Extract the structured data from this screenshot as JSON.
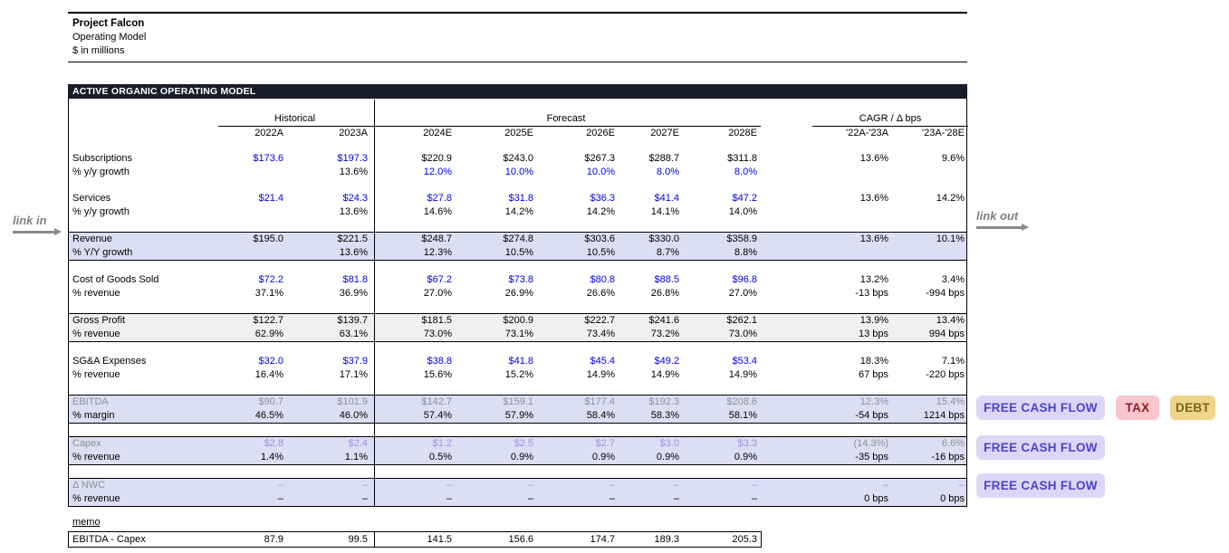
{
  "page": {
    "title": "Project Falcon",
    "subtitle": "Operating Model",
    "units": "$ in millions"
  },
  "links": {
    "link_in": "link in",
    "link_out": "link out"
  },
  "model": {
    "banner": "ACTIVE ORGANIC OPERATING MODEL",
    "col_groups": {
      "historical": "Historical",
      "forecast": "Forecast",
      "cagr": "CAGR / Δ bps"
    },
    "columns": [
      "2022A",
      "2023A",
      "2024E",
      "2025E",
      "2026E",
      "2027E",
      "2028E",
      "'22A-'23A",
      "'23A-'28E"
    ],
    "rows": [
      {
        "label": "Subscriptions",
        "label_style": "calc",
        "sub_label": "% y/y growth",
        "highlight": "none",
        "values": [
          "$173.6",
          "$197.3",
          "$220.9",
          "$243.0",
          "$267.3",
          "$288.7",
          "$311.8",
          "13.6%",
          "9.6%"
        ],
        "value_styles": [
          "input",
          "input",
          "calc",
          "calc",
          "calc",
          "calc",
          "calc",
          "calc",
          "calc"
        ],
        "sub_values": [
          "",
          "13.6%",
          "12.0%",
          "10.0%",
          "10.0%",
          "8.0%",
          "8.0%",
          "",
          ""
        ],
        "sub_styles": [
          "calc",
          "calc",
          "input",
          "input",
          "input",
          "input",
          "input",
          "calc",
          "calc"
        ]
      },
      {
        "label": "Services",
        "label_style": "calc",
        "sub_label": "% y/y growth",
        "highlight": "none",
        "values": [
          "$21.4",
          "$24.3",
          "$27.8",
          "$31.8",
          "$36.3",
          "$41.4",
          "$47.2",
          "13.6%",
          "14.2%"
        ],
        "value_styles": [
          "input",
          "input",
          "input",
          "input",
          "input",
          "input",
          "input",
          "calc",
          "calc"
        ],
        "sub_values": [
          "",
          "13.6%",
          "14.6%",
          "14.2%",
          "14.2%",
          "14.1%",
          "14.0%",
          "",
          ""
        ],
        "sub_styles": [
          "calc",
          "calc",
          "calc",
          "calc",
          "calc",
          "calc",
          "calc",
          "calc",
          "calc"
        ]
      },
      {
        "label": "Revenue",
        "label_style": "calc",
        "sub_label": "% Y/Y growth",
        "highlight": "lav",
        "values": [
          "$195.0",
          "$221.5",
          "$248.7",
          "$274.8",
          "$303.6",
          "$330.0",
          "$358.9",
          "13.6%",
          "10.1%"
        ],
        "value_styles": [
          "calc",
          "calc",
          "calc",
          "calc",
          "calc",
          "calc",
          "calc",
          "calc",
          "calc"
        ],
        "sub_values": [
          "",
          "13.6%",
          "12.3%",
          "10.5%",
          "10.5%",
          "8.7%",
          "8.8%",
          "",
          ""
        ],
        "sub_styles": [
          "calc",
          "calc",
          "calc",
          "calc",
          "calc",
          "calc",
          "calc",
          "calc",
          "calc"
        ]
      },
      {
        "label": "Cost of Goods Sold",
        "label_style": "calc",
        "sub_label": "% revenue",
        "highlight": "none",
        "values": [
          "$72.2",
          "$81.8",
          "$67.2",
          "$73.8",
          "$80.8",
          "$88.5",
          "$96.8",
          "13.2%",
          "3.4%"
        ],
        "value_styles": [
          "input",
          "input",
          "input",
          "input",
          "input",
          "input",
          "input",
          "calc",
          "calc"
        ],
        "sub_values": [
          "37.1%",
          "36.9%",
          "27.0%",
          "26.9%",
          "26.6%",
          "26.8%",
          "27.0%",
          "-13 bps",
          "-994 bps"
        ],
        "sub_styles": [
          "calc",
          "calc",
          "calc",
          "calc",
          "calc",
          "calc",
          "calc",
          "calc",
          "calc"
        ]
      },
      {
        "label": "Gross Profit",
        "label_style": "calc",
        "sub_label": "% revenue",
        "highlight": "gray",
        "values": [
          "$122.7",
          "$139.7",
          "$181.5",
          "$200.9",
          "$222.7",
          "$241.6",
          "$262.1",
          "13.9%",
          "13.4%"
        ],
        "value_styles": [
          "calc",
          "calc",
          "calc",
          "calc",
          "calc",
          "calc",
          "calc",
          "calc",
          "calc"
        ],
        "sub_values": [
          "62.9%",
          "63.1%",
          "73.0%",
          "73.1%",
          "73.4%",
          "73.2%",
          "73.0%",
          "13 bps",
          "994 bps"
        ],
        "sub_styles": [
          "calc",
          "calc",
          "calc",
          "calc",
          "calc",
          "calc",
          "calc",
          "calc",
          "calc"
        ]
      },
      {
        "label": "SG&A Expenses",
        "label_style": "calc",
        "sub_label": "% revenue",
        "highlight": "none",
        "values": [
          "$32.0",
          "$37.9",
          "$38.8",
          "$41.8",
          "$45.4",
          "$49.2",
          "$53.4",
          "18.3%",
          "7.1%"
        ],
        "value_styles": [
          "input",
          "input",
          "input",
          "input",
          "input",
          "input",
          "input",
          "calc",
          "calc"
        ],
        "sub_values": [
          "16.4%",
          "17.1%",
          "15.6%",
          "15.2%",
          "14.9%",
          "14.9%",
          "14.9%",
          "67 bps",
          "-220 bps"
        ],
        "sub_styles": [
          "calc",
          "calc",
          "calc",
          "calc",
          "calc",
          "calc",
          "calc",
          "calc",
          "calc"
        ]
      },
      {
        "label": "EBITDA",
        "label_style": "muted",
        "sub_label": "% margin",
        "highlight": "lav",
        "values": [
          "$90.7",
          "$101.9",
          "$142.7",
          "$159.1",
          "$177.4",
          "$192.3",
          "$208.6",
          "12.3%",
          "15.4%"
        ],
        "value_styles": [
          "muted",
          "muted",
          "muted",
          "muted",
          "muted",
          "muted",
          "muted",
          "muted",
          "muted"
        ],
        "sub_values": [
          "46.5%",
          "46.0%",
          "57.4%",
          "57.9%",
          "58.4%",
          "58.3%",
          "58.1%",
          "-54 bps",
          "1214 bps"
        ],
        "sub_styles": [
          "calc",
          "calc",
          "calc",
          "calc",
          "calc",
          "calc",
          "calc",
          "calc",
          "calc"
        ]
      },
      {
        "label": "Capex",
        "label_style": "muted",
        "sub_label": "% revenue",
        "highlight": "lav",
        "values": [
          "$2.8",
          "$2.4",
          "$1.2",
          "$2.5",
          "$2.7",
          "$3.0",
          "$3.3",
          "(14.3%)",
          "6.6%"
        ],
        "value_styles": [
          "soft",
          "soft",
          "soft",
          "soft",
          "soft",
          "soft",
          "soft",
          "muted",
          "muted"
        ],
        "sub_values": [
          "1.4%",
          "1.1%",
          "0.5%",
          "0.9%",
          "0.9%",
          "0.9%",
          "0.9%",
          "-35 bps",
          "-16 bps"
        ],
        "sub_styles": [
          "calc",
          "calc",
          "calc",
          "calc",
          "calc",
          "calc",
          "calc",
          "calc",
          "calc"
        ]
      },
      {
        "label": "Δ NWC",
        "label_style": "muted",
        "sub_label": "% revenue",
        "highlight": "lav",
        "values": [
          "–",
          "–",
          "–",
          "–",
          "–",
          "–",
          "–",
          "–",
          "–"
        ],
        "value_styles": [
          "soft",
          "soft",
          "soft",
          "soft",
          "soft",
          "soft",
          "soft",
          "muted",
          "muted"
        ],
        "sub_values": [
          "–",
          "–",
          "–",
          "–",
          "–",
          "–",
          "–",
          "0 bps",
          "0 bps"
        ],
        "sub_styles": [
          "calc",
          "calc",
          "calc",
          "calc",
          "calc",
          "calc",
          "calc",
          "calc",
          "calc"
        ]
      }
    ]
  },
  "memo": {
    "label": "memo",
    "row_label": "EBITDA - Capex",
    "values": [
      "87.9",
      "99.5",
      "141.5",
      "156.6",
      "174.7",
      "189.3",
      "205.3"
    ]
  },
  "buttons": [
    {
      "label": "FREE CASH FLOW"
    },
    {
      "label": "TAX"
    },
    {
      "label": "DEBT"
    },
    {
      "label": "FREE CASH FLOW"
    },
    {
      "label": "FREE CASH FLOW"
    }
  ],
  "colors": {
    "input_value": "#0000ee",
    "formula_value": "#000000",
    "muted_value": "#8f8f94",
    "soft_value": "#9595e2",
    "highlight_lavender": "#dcdff3",
    "highlight_gray": "#f0f0f0",
    "banner_bg": "#191c29",
    "fcf_button_bg": "#ddd6f7",
    "fcf_button_text": "#4a43cf",
    "tax_button_bg": "#f9c6ce",
    "tax_button_text": "#8f2026",
    "debt_button_bg": "#efd489",
    "debt_button_text": "#7c6418"
  }
}
